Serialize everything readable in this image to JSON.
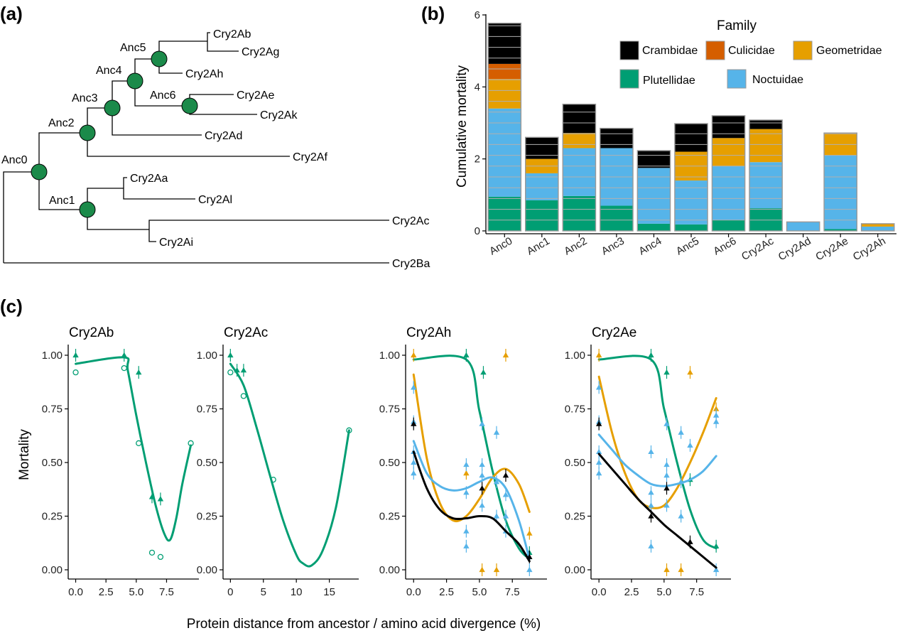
{
  "panel_labels": {
    "a": "(a)",
    "b": "(b)",
    "c": "(c)"
  },
  "colors": {
    "Crambidae": "#000000",
    "Culicidae": "#D55E00",
    "Geometridae": "#E69F00",
    "Plutellidae": "#009E73",
    "Noctuidae": "#56B4E9",
    "node": "#1b8a4a"
  },
  "chart_data": [
    {
      "type": "tree",
      "panel": "(a)",
      "internal_nodes": [
        "Anc0",
        "Anc1",
        "Anc2",
        "Anc3",
        "Anc4",
        "Anc5",
        "Anc6"
      ],
      "tips": [
        "Cry2Ab",
        "Cry2Ag",
        "Cry2Ah",
        "Cry2Ae",
        "Cry2Ak",
        "Cry2Ad",
        "Cry2Af",
        "Cry2Aa",
        "Cry2Al",
        "Cry2Ac",
        "Cry2Ai",
        "Cry2Ba"
      ],
      "topology": "(((((((Cry2Ab,Cry2Ag)Anc5,Cry2Ah),(Cry2Ae,Cry2Ak)Anc6)Anc4,Cry2Ad)Anc3,Cry2Af)Anc2,((Cry2Aa,Cry2Al),(Cry2Ac,Cry2Ai))Anc1)Anc0,Cry2Ba)"
    },
    {
      "type": "bar",
      "panel": "(b)",
      "stacked": true,
      "ylabel": "Cumulative mortality",
      "xlabel": "",
      "ylim": [
        0,
        6
      ],
      "yticks": [
        0,
        2,
        4,
        6
      ],
      "legend_title": "Family",
      "legend": [
        "Crambidae",
        "Culicidae",
        "Geometridae",
        "Plutellidae",
        "Noctuidae"
      ],
      "legend_position": "top-right",
      "categories": [
        "Anc0",
        "Anc1",
        "Anc2",
        "Anc3",
        "Anc4",
        "Anc5",
        "Anc6",
        "Cry2Ac",
        "Cry2Ad",
        "Cry2Ae",
        "Cry2Ah"
      ],
      "series": [
        {
          "name": "Plutellidae",
          "values": [
            0.95,
            0.85,
            0.97,
            0.7,
            0.2,
            0.18,
            0.3,
            0.63,
            0.0,
            0.05,
            0.0
          ]
        },
        {
          "name": "Noctuidae",
          "values": [
            2.45,
            0.75,
            1.33,
            1.6,
            1.55,
            1.22,
            1.5,
            1.28,
            0.25,
            2.05,
            0.12
          ]
        },
        {
          "name": "Geometridae",
          "values": [
            0.82,
            0.4,
            0.42,
            0.0,
            0.0,
            0.8,
            0.78,
            0.92,
            0.0,
            0.62,
            0.08
          ]
        },
        {
          "name": "Culicidae",
          "values": [
            0.42,
            0.0,
            0.0,
            0.0,
            0.0,
            0.0,
            0.0,
            0.0,
            0.0,
            0.0,
            0.0
          ]
        },
        {
          "name": "Crambidae",
          "values": [
            1.13,
            0.6,
            0.8,
            0.55,
            0.48,
            0.78,
            0.62,
            0.25,
            0.0,
            0.0,
            0.0
          ]
        }
      ]
    },
    {
      "type": "scatter",
      "panel": "(c)",
      "ylabel": "Mortality",
      "xlabel": "Protein distance from ancestor / amino acid divergence (%)",
      "ylim": [
        0,
        1
      ],
      "yticks": [
        "0.00",
        "0.25",
        "0.50",
        "0.75",
        "1.00"
      ],
      "facets": [
        {
          "title": "Cry2Ab",
          "xlim": [
            -0.5,
            9.7
          ],
          "xticks": [
            "0.0",
            "2.5",
            "5.0",
            "7.5"
          ],
          "series": [
            {
              "name": "Plutellidae",
              "curve_x": [
                0.0,
                4.0,
                4.3,
                5.0,
                5.8,
                6.6,
                7.3,
                7.8,
                8.3,
                8.8,
                9.5
              ],
              "curve_y": [
                0.96,
                0.99,
                0.93,
                0.72,
                0.5,
                0.3,
                0.17,
                0.14,
                0.24,
                0.4,
                0.58
              ],
              "points": [
                [
                  0.0,
                  1.0,
                  "tri"
                ],
                [
                  0.0,
                  0.92,
                  "circ"
                ],
                [
                  4.0,
                  1.0,
                  "tri"
                ],
                [
                  4.0,
                  0.94,
                  "circ"
                ],
                [
                  5.2,
                  0.92,
                  "tri"
                ],
                [
                  5.2,
                  0.59,
                  "circ"
                ],
                [
                  6.3,
                  0.34,
                  "tri"
                ],
                [
                  7.0,
                  0.33,
                  "tri"
                ],
                [
                  6.3,
                  0.08,
                  "circ"
                ],
                [
                  7.0,
                  0.06,
                  "circ"
                ],
                [
                  9.5,
                  0.59,
                  "circ"
                ]
              ]
            }
          ]
        },
        {
          "title": "Cry2Ac",
          "xlim": [
            -0.9,
            18.6
          ],
          "xticks": [
            "0",
            "5",
            "10",
            "15"
          ],
          "series": [
            {
              "name": "Plutellidae",
              "curve_x": [
                0,
                2,
                4,
                6,
                8,
                10,
                11,
                12.3,
                14,
                16,
                18
              ],
              "curve_y": [
                0.96,
                0.86,
                0.66,
                0.44,
                0.23,
                0.07,
                0.03,
                0.02,
                0.09,
                0.29,
                0.65
              ],
              "points": [
                [
                  0,
                  1.0,
                  "tri"
                ],
                [
                  0,
                  0.92,
                  "circ"
                ],
                [
                  1,
                  0.93,
                  "tri"
                ],
                [
                  2,
                  0.93,
                  "tri"
                ],
                [
                  2,
                  0.81,
                  "circ"
                ],
                [
                  6.5,
                  0.42,
                  "circ"
                ],
                [
                  18,
                  0.65,
                  "circ"
                ]
              ]
            }
          ]
        },
        {
          "title": "Cry2Ah",
          "xlim": [
            -0.5,
            9.7
          ],
          "xticks": [
            "0.0",
            "2.5",
            "5.0",
            "7.5"
          ],
          "series": [
            {
              "name": "Plutellidae",
              "curve_x": [
                0,
                4.0,
                5.0,
                6.0,
                7.0,
                8.0,
                8.8
              ],
              "curve_y": [
                0.98,
                0.98,
                0.74,
                0.46,
                0.23,
                0.1,
                0.05
              ],
              "points": [
                [
                  4.0,
                  1.0,
                  "tri"
                ],
                [
                  5.3,
                  0.92,
                  "tri"
                ],
                [
                  8.8,
                  0.08,
                  "tri"
                ]
              ]
            },
            {
              "name": "Geometridae",
              "curve_x": [
                0,
                1,
                2,
                3,
                4,
                5,
                6,
                7,
                8,
                8.8
              ],
              "curve_y": [
                0.91,
                0.52,
                0.31,
                0.23,
                0.25,
                0.33,
                0.43,
                0.47,
                0.4,
                0.27
              ],
              "points": [
                [
                  0,
                  1.0,
                  "tri"
                ],
                [
                  4.0,
                  0.45,
                  "tri"
                ],
                [
                  7.0,
                  1.0,
                  "tri"
                ],
                [
                  5.2,
                  0.0,
                  "tri"
                ],
                [
                  6.3,
                  0.0,
                  "tri"
                ],
                [
                  8.8,
                  0.17,
                  "tri"
                ]
              ]
            },
            {
              "name": "Noctuidae",
              "curve_x": [
                0,
                1,
                2,
                3,
                4,
                5,
                6,
                7,
                8,
                8.8
              ],
              "curve_y": [
                0.6,
                0.45,
                0.39,
                0.37,
                0.38,
                0.41,
                0.43,
                0.38,
                0.23,
                0.05
              ],
              "points": [
                [
                  0,
                  0.85,
                  "tri"
                ],
                [
                  0,
                  0.69,
                  "tri"
                ],
                [
                  0,
                  0.55,
                  "tri"
                ],
                [
                  0,
                  0.5,
                  "tri"
                ],
                [
                  0,
                  0.45,
                  "tri"
                ],
                [
                  4.0,
                  0.18,
                  "tri"
                ],
                [
                  4.0,
                  0.11,
                  "tri"
                ],
                [
                  4.0,
                  0.49,
                  "tri"
                ],
                [
                  4.0,
                  0.36,
                  "tri"
                ],
                [
                  5.2,
                  0.68,
                  "tri"
                ],
                [
                  5.2,
                  0.49,
                  "tri"
                ],
                [
                  5.2,
                  0.44,
                  "tri"
                ],
                [
                  5.2,
                  0.3,
                  "tri"
                ],
                [
                  6.3,
                  0.64,
                  "tri"
                ],
                [
                  6.3,
                  0.41,
                  "tri"
                ],
                [
                  6.3,
                  0.25,
                  "tri"
                ],
                [
                  7.0,
                  0.35,
                  "tri"
                ],
                [
                  7.0,
                  0.25,
                  "tri"
                ],
                [
                  7.0,
                  0.18,
                  "tri"
                ],
                [
                  8.8,
                  0.0,
                  "tri"
                ]
              ]
            },
            {
              "name": "Crambidae",
              "curve_x": [
                0,
                1,
                2,
                3,
                4,
                5,
                6,
                7,
                8,
                8.8
              ],
              "curve_y": [
                0.55,
                0.38,
                0.28,
                0.24,
                0.24,
                0.25,
                0.24,
                0.18,
                0.12,
                0.04
              ],
              "points": [
                [
                  0,
                  0.68,
                  "tri"
                ],
                [
                  5.2,
                  0.38,
                  "tri"
                ],
                [
                  7.0,
                  0.44,
                  "tri"
                ],
                [
                  8.8,
                  0.06,
                  "tri"
                ]
              ]
            }
          ]
        },
        {
          "title": "Cry2Ae",
          "xlim": [
            -0.5,
            9.7
          ],
          "xticks": [
            "0.0",
            "2.5",
            "5.0",
            "7.5"
          ],
          "series": [
            {
              "name": "Plutellidae",
              "curve_x": [
                0,
                4.0,
                5.0,
                6.0,
                7.0,
                8.0,
                9.0
              ],
              "curve_y": [
                0.98,
                0.98,
                0.75,
                0.5,
                0.28,
                0.14,
                0.1
              ],
              "points": [
                [
                  4.0,
                  1.0,
                  "tri"
                ],
                [
                  5.2,
                  0.92,
                  "tri"
                ],
                [
                  7.0,
                  0.42,
                  "tri"
                ],
                [
                  9.0,
                  0.11,
                  "tri"
                ]
              ]
            },
            {
              "name": "Geometridae",
              "curve_x": [
                0,
                1,
                2,
                3,
                4,
                5,
                6,
                7,
                8,
                9
              ],
              "curve_y": [
                0.9,
                0.64,
                0.45,
                0.33,
                0.29,
                0.3,
                0.38,
                0.5,
                0.64,
                0.8
              ],
              "points": [
                [
                  0,
                  1.0,
                  "tri"
                ],
                [
                  7.0,
                  0.92,
                  "tri"
                ],
                [
                  5.2,
                  0.0,
                  "tri"
                ],
                [
                  6.3,
                  0.0,
                  "tri"
                ],
                [
                  9.0,
                  0.75,
                  "tri"
                ]
              ]
            },
            {
              "name": "Noctuidae",
              "curve_x": [
                0,
                1,
                2,
                3,
                4,
                5,
                6,
                7,
                8,
                9
              ],
              "curve_y": [
                0.63,
                0.56,
                0.49,
                0.44,
                0.4,
                0.39,
                0.4,
                0.42,
                0.46,
                0.53
              ],
              "points": [
                [
                  0,
                  0.85,
                  "tri"
                ],
                [
                  0,
                  0.69,
                  "tri"
                ],
                [
                  0,
                  0.55,
                  "tri"
                ],
                [
                  0,
                  0.5,
                  "tri"
                ],
                [
                  0,
                  0.45,
                  "tri"
                ],
                [
                  4.0,
                  0.11,
                  "tri"
                ],
                [
                  4.0,
                  0.36,
                  "tri"
                ],
                [
                  4.0,
                  0.3,
                  "tri"
                ],
                [
                  4.0,
                  0.55,
                  "tri"
                ],
                [
                  5.2,
                  0.68,
                  "tri"
                ],
                [
                  5.2,
                  0.49,
                  "tri"
                ],
                [
                  5.2,
                  0.44,
                  "tri"
                ],
                [
                  5.2,
                  0.3,
                  "tri"
                ],
                [
                  6.3,
                  0.64,
                  "tri"
                ],
                [
                  6.3,
                  0.41,
                  "tri"
                ],
                [
                  6.3,
                  0.25,
                  "tri"
                ],
                [
                  7.0,
                  0.58,
                  "tri"
                ],
                [
                  9.0,
                  0.72,
                  "tri"
                ],
                [
                  9.0,
                  0.69,
                  "tri"
                ],
                [
                  9.0,
                  0.0,
                  "tri"
                ]
              ]
            },
            {
              "name": "Crambidae",
              "curve_x": [
                0,
                1,
                2,
                3,
                4,
                5,
                6,
                7,
                8,
                9
              ],
              "curve_y": [
                0.54,
                0.47,
                0.4,
                0.33,
                0.27,
                0.21,
                0.16,
                0.11,
                0.06,
                0.01
              ],
              "points": [
                [
                  0,
                  0.68,
                  "tri"
                ],
                [
                  4.0,
                  0.25,
                  "tri"
                ],
                [
                  5.2,
                  0.38,
                  "tri"
                ],
                [
                  7.0,
                  0.13,
                  "tri"
                ]
              ]
            }
          ]
        }
      ]
    }
  ]
}
